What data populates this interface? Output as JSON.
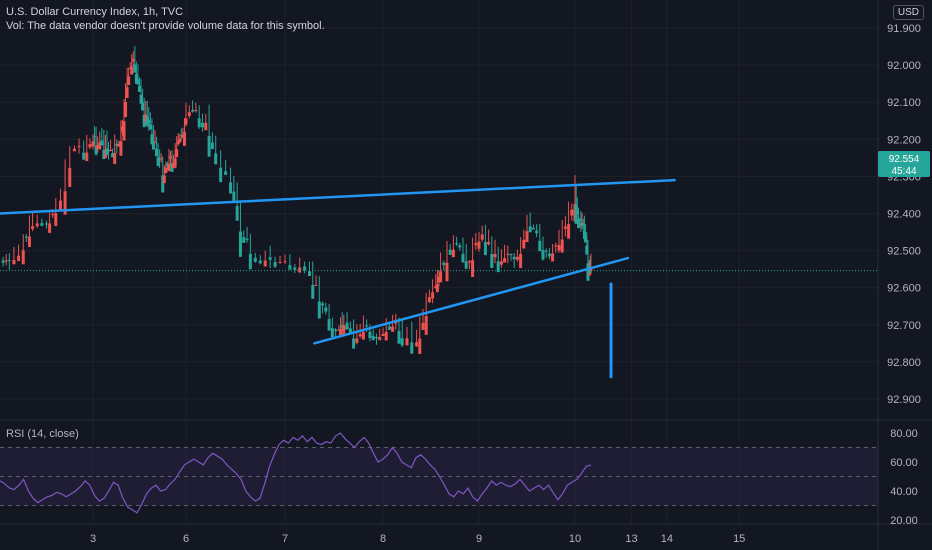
{
  "header": {
    "title": "U.S. Dollar Currency Index, 1h, TVC",
    "vol_note": "Vol: The data vendor doesn't provide volume data for this symbol."
  },
  "currency_button": "USD",
  "price_tag": {
    "price": "92.554",
    "countdown": "45:44"
  },
  "rsi_label": "RSI (14, close)",
  "colors": {
    "background": "#131722",
    "up": "#26a69a",
    "down": "#ef5350",
    "trendline": "#2196f3",
    "rsi_line": "#7e57c2",
    "rsi_band": "#2a2344",
    "grid": "#1e222d",
    "axis_text": "#b2b5be"
  },
  "chart_data": [
    {
      "type": "candlestick",
      "title": "U.S. Dollar Currency Index, 1h, TVC",
      "xlabel": "",
      "ylabel": "",
      "x_ticks": [
        "3",
        "6",
        "7",
        "8",
        "9",
        "10",
        "13",
        "14",
        "15"
      ],
      "y_ticks": [
        "92.900",
        "92.800",
        "92.700",
        "92.600",
        "92.500",
        "92.400",
        "92.300",
        "92.200",
        "92.100",
        "92.000",
        "91.900"
      ],
      "ylim": [
        91.86,
        92.94
      ],
      "last_price": 92.554,
      "close_path": [
        [
          2.0,
          92.52
        ],
        [
          2.1,
          92.54
        ],
        [
          2.25,
          92.47
        ],
        [
          2.35,
          92.44
        ],
        [
          2.5,
          92.41
        ],
        [
          2.6,
          92.38
        ],
        [
          2.75,
          92.22
        ],
        [
          2.9,
          92.22
        ],
        [
          3.0,
          92.2
        ],
        [
          3.15,
          92.2
        ],
        [
          3.35,
          92.22
        ],
        [
          3.5,
          92.23
        ],
        [
          3.7,
          92.22
        ],
        [
          3.9,
          92.18
        ],
        [
          4.05,
          92.06
        ],
        [
          4.2,
          92.0
        ],
        [
          4.35,
          91.99
        ],
        [
          4.5,
          92.07
        ],
        [
          4.65,
          92.12
        ],
        [
          4.8,
          92.15
        ],
        [
          4.95,
          92.19
        ],
        [
          5.1,
          92.24
        ],
        [
          5.25,
          92.28
        ],
        [
          5.4,
          92.25
        ],
        [
          5.55,
          92.25
        ],
        [
          5.7,
          92.22
        ],
        [
          5.85,
          92.18
        ],
        [
          6.0,
          92.14
        ],
        [
          6.1,
          92.12
        ],
        [
          6.2,
          92.15
        ],
        [
          6.3,
          92.25
        ],
        [
          6.45,
          92.3
        ],
        [
          6.55,
          92.44
        ],
        [
          6.65,
          92.5
        ],
        [
          6.8,
          92.52
        ],
        [
          6.95,
          92.53
        ],
        [
          7.1,
          92.54
        ],
        [
          7.25,
          92.57
        ],
        [
          7.35,
          92.62
        ],
        [
          7.45,
          92.68
        ],
        [
          7.55,
          92.72
        ],
        [
          7.6,
          92.69
        ],
        [
          7.7,
          92.74
        ],
        [
          7.8,
          92.7
        ],
        [
          7.9,
          92.73
        ],
        [
          8.0,
          92.71
        ],
        [
          8.1,
          92.69
        ],
        [
          8.2,
          92.72
        ],
        [
          8.35,
          92.74
        ],
        [
          8.45,
          92.64
        ],
        [
          8.55,
          92.6
        ],
        [
          8.6,
          92.54
        ],
        [
          8.7,
          92.48
        ],
        [
          8.8,
          92.5
        ],
        [
          8.9,
          92.52
        ],
        [
          9.0,
          92.44
        ],
        [
          9.1,
          92.48
        ],
        [
          9.2,
          92.52
        ],
        [
          9.3,
          92.5
        ],
        [
          9.4,
          92.51
        ],
        [
          9.5,
          92.43
        ],
        [
          9.6,
          92.46
        ],
        [
          9.7,
          92.5
        ],
        [
          9.8,
          92.48
        ],
        [
          9.9,
          92.42
        ],
        [
          10.0,
          92.34
        ],
        [
          10.1,
          92.4
        ],
        [
          10.2,
          92.42
        ],
        [
          10.3,
          92.48
        ],
        [
          10.4,
          92.54
        ],
        [
          10.45,
          92.554
        ]
      ],
      "annotations": [
        {
          "name": "lower-trendline",
          "from": [
            2.0,
            92.4
          ],
          "to": [
            12.82,
            92.31
          ]
        },
        {
          "name": "upper-trendline",
          "from": [
            7.3,
            92.75
          ],
          "to": [
            11.5,
            92.52
          ]
        },
        {
          "name": "vertical-marker",
          "from": [
            11.02,
            92.84
          ],
          "to": [
            11.02,
            92.59
          ]
        }
      ]
    },
    {
      "type": "line",
      "title": "RSI (14, close)",
      "y_ticks": [
        "80.00",
        "60.00",
        "40.00",
        "20.00"
      ],
      "ylim": [
        15,
        84
      ],
      "bands": [
        70,
        50,
        30
      ],
      "values": [
        47,
        45,
        42,
        41,
        44,
        48,
        40,
        35,
        32,
        34,
        36,
        37,
        39,
        38,
        36,
        38,
        40,
        43,
        47,
        44,
        37,
        33,
        35,
        40,
        46,
        44,
        35,
        29,
        27,
        25,
        31,
        38,
        42,
        44,
        40,
        41,
        45,
        48,
        53,
        58,
        60,
        62,
        60,
        58,
        63,
        66,
        64,
        62,
        58,
        55,
        52,
        48,
        40,
        36,
        33,
        35,
        45,
        57,
        65,
        72,
        75,
        73,
        77,
        75,
        78,
        74,
        77,
        73,
        72,
        74,
        73,
        78,
        80,
        76,
        73,
        70,
        74,
        77,
        73,
        66,
        60,
        62,
        65,
        70,
        66,
        60,
        58,
        56,
        63,
        65,
        62,
        58,
        55,
        50,
        44,
        38,
        36,
        40,
        38,
        42,
        36,
        33,
        38,
        42,
        47,
        44,
        46,
        44,
        43,
        45,
        48,
        44,
        40,
        42,
        44,
        41,
        44,
        39,
        34,
        38,
        44,
        46,
        48,
        52,
        57,
        58
      ]
    }
  ]
}
